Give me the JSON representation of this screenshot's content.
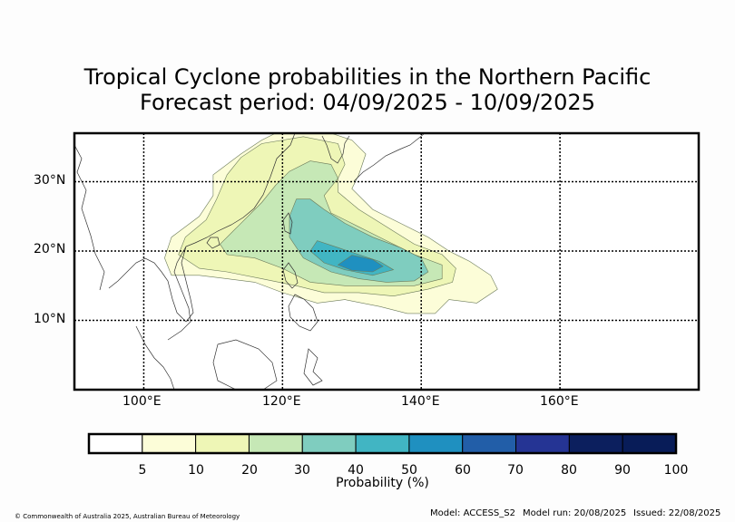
{
  "title": {
    "line1": "Tropical Cyclone probabilities in the Northern Pacific",
    "line2": "Forecast period: 04/09/2025 - 10/09/2025"
  },
  "map": {
    "lon_range": [
      90,
      180
    ],
    "lat_range": [
      0,
      37
    ],
    "lat_labels": [
      {
        "value": 30,
        "label": "30°N"
      },
      {
        "value": 20,
        "label": "20°N"
      },
      {
        "value": 10,
        "label": "10°N"
      }
    ],
    "lon_labels": [
      {
        "value": 100,
        "label": "100°E"
      },
      {
        "value": 120,
        "label": "120°E"
      },
      {
        "value": 140,
        "label": "140°E"
      },
      {
        "value": 160,
        "label": "160°E"
      }
    ],
    "gridlines": "dotted"
  },
  "probability_regions": [
    {
      "level": 5,
      "color": "#fcfdd8",
      "polygon": [
        [
          103,
          19
        ],
        [
          104,
          22
        ],
        [
          108,
          25
        ],
        [
          110,
          28
        ],
        [
          110,
          31
        ],
        [
          114,
          34
        ],
        [
          117,
          36
        ],
        [
          119,
          37
        ],
        [
          127,
          37
        ],
        [
          130,
          36
        ],
        [
          132,
          34
        ],
        [
          131,
          31
        ],
        [
          130,
          29
        ],
        [
          133,
          26
        ],
        [
          137,
          24
        ],
        [
          141,
          22
        ],
        [
          144,
          20
        ],
        [
          147,
          18.5
        ],
        [
          150,
          16.5
        ],
        [
          151,
          14.5
        ],
        [
          148,
          12.5
        ],
        [
          144,
          13
        ],
        [
          142,
          11
        ],
        [
          138,
          11
        ],
        [
          134,
          12
        ],
        [
          129,
          13
        ],
        [
          125,
          12.5
        ],
        [
          120,
          14
        ],
        [
          116,
          15.5
        ],
        [
          112,
          16
        ],
        [
          108,
          16.5
        ],
        [
          104,
          16.5
        ]
      ]
    },
    {
      "level": 10,
      "color": "#eef6b6",
      "polygon": [
        [
          105,
          19.5
        ],
        [
          106,
          22
        ],
        [
          109,
          24.5
        ],
        [
          110.5,
          27.5
        ],
        [
          112,
          31
        ],
        [
          114,
          33.5
        ],
        [
          117,
          35.5
        ],
        [
          123,
          36.5
        ],
        [
          128,
          35.5
        ],
        [
          129,
          32.5
        ],
        [
          128,
          30.5
        ],
        [
          128,
          28.5
        ],
        [
          131,
          26
        ],
        [
          135,
          23.5
        ],
        [
          139,
          21
        ],
        [
          143,
          19.5
        ],
        [
          145,
          17.5
        ],
        [
          144.5,
          15.5
        ],
        [
          141,
          14.5
        ],
        [
          136,
          13.5
        ],
        [
          131,
          14
        ],
        [
          126,
          14
        ],
        [
          122,
          15
        ],
        [
          117,
          16
        ],
        [
          112,
          17
        ],
        [
          108,
          17.5
        ]
      ]
    },
    {
      "level": 20,
      "color": "#c6e8b6",
      "polygon": [
        [
          111,
          21
        ],
        [
          114,
          24
        ],
        [
          117,
          27
        ],
        [
          119,
          29.5
        ],
        [
          121,
          31.5
        ],
        [
          124,
          33
        ],
        [
          127,
          32.5
        ],
        [
          128,
          30.5
        ],
        [
          126,
          28
        ],
        [
          127,
          25.5
        ],
        [
          131,
          23.5
        ],
        [
          135,
          21.5
        ],
        [
          139,
          19.5
        ],
        [
          143,
          18
        ],
        [
          143,
          16
        ],
        [
          139,
          15
        ],
        [
          134,
          15
        ],
        [
          129,
          15
        ],
        [
          124,
          15.5
        ],
        [
          120,
          17.5
        ],
        [
          116,
          19
        ],
        [
          112,
          19.5
        ]
      ]
    },
    {
      "level": 30,
      "color": "#7fcdbf",
      "polygon": [
        [
          121,
          25
        ],
        [
          122,
          27.5
        ],
        [
          124,
          27.5
        ],
        [
          126,
          26
        ],
        [
          129,
          24
        ],
        [
          133,
          22
        ],
        [
          137,
          20.5
        ],
        [
          140,
          19
        ],
        [
          141,
          17
        ],
        [
          139,
          15.7
        ],
        [
          135,
          15.5
        ],
        [
          131,
          16
        ],
        [
          127,
          17
        ],
        [
          123,
          19
        ],
        [
          121,
          22
        ]
      ]
    },
    {
      "level": 40,
      "color": "#41b5c3",
      "polygon": [
        [
          124,
          20
        ],
        [
          125,
          21.5
        ],
        [
          128,
          20.5
        ],
        [
          131,
          19.5
        ],
        [
          134,
          18.5
        ],
        [
          136,
          17.3
        ],
        [
          133,
          16.5
        ],
        [
          129,
          17.3
        ],
        [
          126,
          18.3
        ]
      ]
    },
    {
      "level": 50,
      "color": "#1f90c0",
      "polygon": [
        [
          128,
          18
        ],
        [
          130,
          19.4
        ],
        [
          133,
          18.8
        ],
        [
          134.5,
          17.8
        ],
        [
          133,
          17
        ],
        [
          130,
          17.2
        ]
      ]
    }
  ],
  "colorbar": {
    "title": "Probability (%)",
    "ticks": [
      "5",
      "10",
      "20",
      "30",
      "40",
      "50",
      "60",
      "70",
      "80",
      "90",
      "100"
    ],
    "colors": [
      "#ffffff",
      "#fcfdd8",
      "#eef6b6",
      "#c6e8b6",
      "#7fcdbf",
      "#41b5c3",
      "#1f90c0",
      "#225ea8",
      "#253494",
      "#0c1f5e",
      "#081c58"
    ]
  },
  "footer": {
    "copyright": "© Commonwealth of Australia 2025, Australian Bureau of Meteorology",
    "model": "Model: ACCESS_S2",
    "model_run": "Model run: 20/08/2025",
    "issued": "Issued: 22/08/2025"
  }
}
